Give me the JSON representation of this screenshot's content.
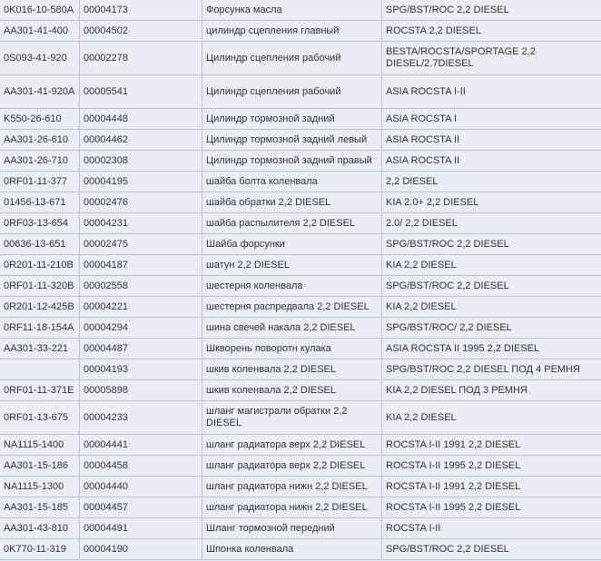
{
  "rows": [
    {
      "code": "0K016-10-580A",
      "id": "00004173",
      "name": "Форсунка масла",
      "model": "SPG/BST/ROC 2,2 DIESEL"
    },
    {
      "code": "AA301-41-400",
      "id": "00004502",
      "name": "цилиндр сцепления главный",
      "model": "ROCSTA 2,2 DIESEL"
    },
    {
      "code": "0S093-41-920",
      "id": "00002278",
      "name": "Цилиндр сцепления рабочий",
      "model": "BESTA/ROCSTA/SPORTAGE 2,2 DIESEL/2.7DIESEL",
      "tall": true
    },
    {
      "code": "AA301-41-920A",
      "id": "00005541",
      "name": "Цилиндр сцепления рабочий",
      "model": "ASIA ROCSTA I-II",
      "tall": true
    },
    {
      "code": "K550-26-610",
      "id": "00004448",
      "name": "Цилиндр тормозной задний",
      "model": "ASIA ROCSTA I"
    },
    {
      "code": "AA301-26-610",
      "id": "00004462",
      "name": "Цилиндр тормозной задний левый",
      "model": "ASIA ROCSTA II"
    },
    {
      "code": "AA301-26-710",
      "id": "00002308",
      "name": "Цилиндр тормозной задний правый",
      "model": "ASIA ROCSTA II"
    },
    {
      "code": "0RF01-11-377",
      "id": "00004195",
      "name": "шайба болта коленвала",
      "model": "2,2 DIESEL"
    },
    {
      "code": "01456-13-671",
      "id": "00002476",
      "name": "шайба обратки 2,2 DIESEL",
      "model": "KIA 2.0+ 2,2 DIESEL"
    },
    {
      "code": "0RF03-13-654",
      "id": "00004231",
      "name": "шайба распылителя 2,2 DIESEL",
      "model": "2.0/ 2,2 DIESEL"
    },
    {
      "code": "00636-13-651",
      "id": "00002475",
      "name": "Шайба форсунки",
      "model": "SPG/BST/ROC 2,2 DIESEL"
    },
    {
      "code": "0R201-11-210B",
      "id": "00004187",
      "name": "шатун 2,2 DIESEL",
      "model": "KIA 2,2 DIESEL"
    },
    {
      "code": "0RF01-11-320B",
      "id": "00002558",
      "name": "шестерня коленвала",
      "model": "SPG/BST/ROC 2,2 DIESEL"
    },
    {
      "code": "0R201-12-425B",
      "id": "00004221",
      "name": "шестерня распредвала 2,2 DIESEL",
      "model": "KIA 2,2 DIESEL"
    },
    {
      "code": "0RF11-18-154A",
      "id": "00004294",
      "name": "шина свечей накала 2,2 DIESEL",
      "model": "SPG/BST/ROC/ 2,2 DIESEL"
    },
    {
      "code": "AA301-33-221",
      "id": "00004487",
      "name": "Шкворень поворотн кулака",
      "model": "ASIA ROCSTA II 1995 2,2 DIESEL"
    },
    {
      "code": "",
      "id": "00004193",
      "name": "шкив коленвала 2,2 DIESEL",
      "model": "SPG/BST/ROC 2,2 DIESEL ПОД 4 РЕМНЯ"
    },
    {
      "code": "0RF01-11-371E",
      "id": "00005898",
      "name": "шкив коленвала 2,2 DIESEL",
      "model": "KIA 2,2 DIESEL ПОД 3 РЕМНЯ"
    },
    {
      "code": "0RF01-13-675",
      "id": "00004233",
      "name": "шланг магистрали обратки 2,2 DIESEL",
      "model": "KIA 2,2 DIESEL",
      "tall": true
    },
    {
      "code": "NA1115-1400",
      "id": "00004441",
      "name": "шланг радиатора верх 2,2 DIESEL",
      "model": "ROCSTA I-II 1991 2,2 DIESEL"
    },
    {
      "code": "AA301-15-186",
      "id": "00004458",
      "name": "шланг радиатора верх 2,2 DIESEL",
      "model": "ROCSTA I-II 1995 2,2 DIESEL"
    },
    {
      "code": "NA1115-1300",
      "id": "00004440",
      "name": "шланг радиатора нижн 2,2 DIESEL",
      "model": "ROCSTA I-II 1991 2,2 DIESEL"
    },
    {
      "code": "AA301-15-185",
      "id": "00004457",
      "name": "шланг радиатора нижн 2,2 DIESEL",
      "model": "ROCSTA I-II 1995 2,2 DIESEL"
    },
    {
      "code": "AA301-43-810",
      "id": "00004491",
      "name": "Шланг тормозной передний",
      "model": "ROCSTA I-II"
    },
    {
      "code": "0K770-11-319",
      "id": "00004190",
      "name": "Шпонка коленвала",
      "model": "SPG/BST/ROC 2,2 DIESEL"
    }
  ]
}
